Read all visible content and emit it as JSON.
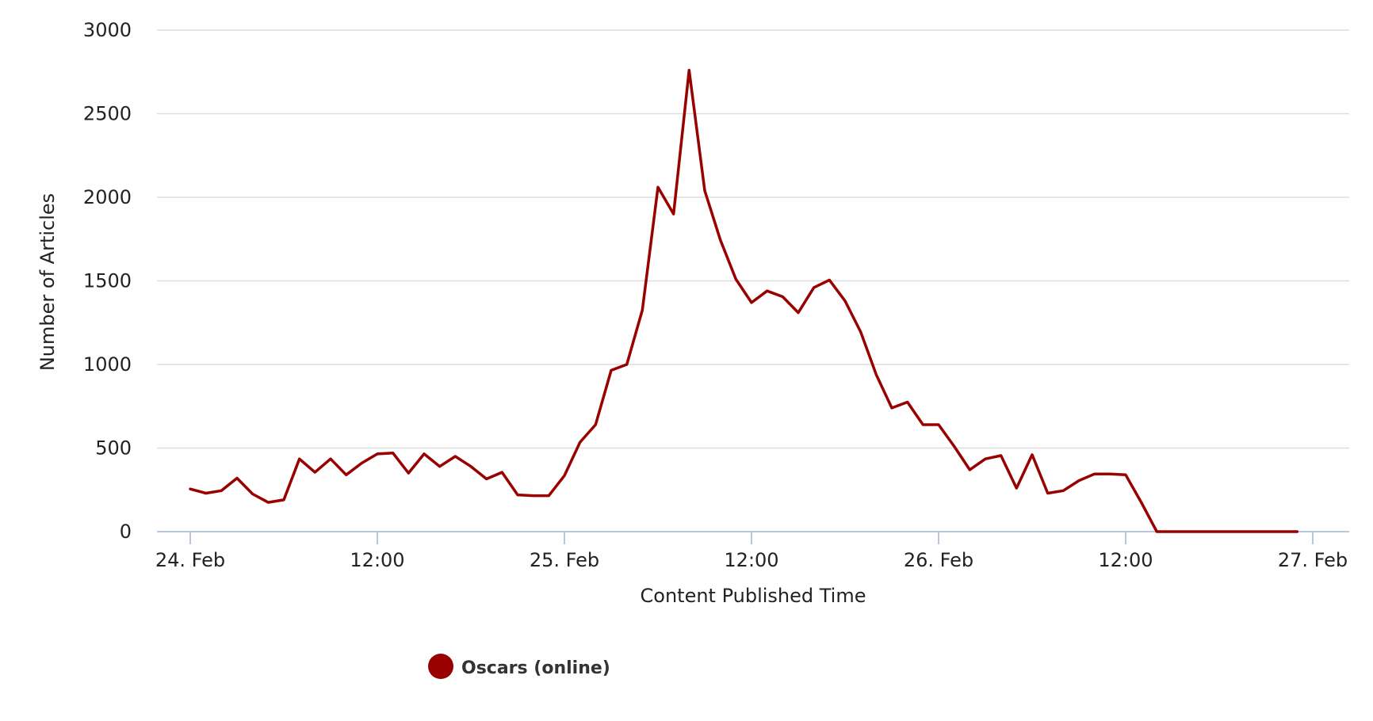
{
  "chart_data": {
    "type": "line",
    "title": "",
    "xlabel": "Content Published Time",
    "ylabel": "Number of Articles",
    "ylim": [
      0,
      3000
    ],
    "y_ticks": [
      "0",
      "500",
      "1000",
      "1500",
      "2000",
      "2500",
      "3000"
    ],
    "x_range_hours": "24 Feb 00:00 – 27 Feb 00:00",
    "x_ticks": [
      {
        "time": "24 Feb 00:00",
        "label": "24. Feb"
      },
      {
        "time": "24 Feb 12:00",
        "label": "12:00"
      },
      {
        "time": "25 Feb 00:00",
        "label": "25. Feb"
      },
      {
        "time": "25 Feb 12:00",
        "label": "12:00"
      },
      {
        "time": "26 Feb 00:00",
        "label": "26. Feb"
      },
      {
        "time": "26 Feb 12:00",
        "label": "12:00"
      },
      {
        "time": "27 Feb 00:00",
        "label": "27. Feb"
      }
    ],
    "grid": true,
    "legend": "bottom-center",
    "series": [
      {
        "name": "Oscars (online)",
        "color": "#990000",
        "x": [
          "24 Feb 00:00",
          "24 Feb 01:00",
          "24 Feb 02:00",
          "24 Feb 03:00",
          "24 Feb 04:00",
          "24 Feb 05:00",
          "24 Feb 06:00",
          "24 Feb 07:00",
          "24 Feb 08:00",
          "24 Feb 09:00",
          "24 Feb 10:00",
          "24 Feb 11:00",
          "24 Feb 12:00",
          "24 Feb 13:00",
          "24 Feb 14:00",
          "24 Feb 15:00",
          "24 Feb 16:00",
          "24 Feb 17:00",
          "24 Feb 18:00",
          "24 Feb 19:00",
          "24 Feb 20:00",
          "24 Feb 21:00",
          "24 Feb 22:00",
          "24 Feb 23:00",
          "25 Feb 00:00",
          "25 Feb 01:00",
          "25 Feb 02:00",
          "25 Feb 03:00",
          "25 Feb 04:00",
          "25 Feb 05:00",
          "25 Feb 06:00",
          "25 Feb 07:00",
          "25 Feb 08:00",
          "25 Feb 09:00",
          "25 Feb 10:00",
          "25 Feb 11:00",
          "25 Feb 12:00",
          "25 Feb 13:00",
          "25 Feb 14:00",
          "25 Feb 15:00",
          "25 Feb 16:00",
          "25 Feb 17:00",
          "25 Feb 18:00",
          "25 Feb 19:00",
          "25 Feb 20:00",
          "25 Feb 21:00",
          "25 Feb 22:00",
          "25 Feb 23:00",
          "26 Feb 00:00",
          "26 Feb 01:00",
          "26 Feb 02:00",
          "26 Feb 03:00",
          "26 Feb 04:00",
          "26 Feb 05:00",
          "26 Feb 06:00",
          "26 Feb 07:00",
          "26 Feb 08:00",
          "26 Feb 09:00",
          "26 Feb 10:00",
          "26 Feb 11:00",
          "26 Feb 12:00",
          "26 Feb 13:00",
          "26 Feb 14:00",
          "26 Feb 15:00",
          "26 Feb 16:00",
          "26 Feb 17:00",
          "26 Feb 18:00",
          "26 Feb 19:00",
          "26 Feb 20:00",
          "26 Feb 21:00",
          "26 Feb 22:00",
          "26 Feb 23:00"
        ],
        "values": [
          255,
          230,
          245,
          320,
          225,
          175,
          190,
          435,
          355,
          435,
          340,
          410,
          465,
          470,
          350,
          465,
          390,
          450,
          390,
          315,
          355,
          220,
          215,
          215,
          335,
          535,
          640,
          965,
          1000,
          1325,
          2060,
          1900,
          2760,
          2040,
          1745,
          1510,
          1370,
          1440,
          1405,
          1310,
          1460,
          1505,
          1380,
          1195,
          940,
          740,
          775,
          640,
          640,
          510,
          370,
          435,
          455,
          260,
          460,
          230,
          245,
          305,
          345,
          345,
          340,
          175,
          0,
          0,
          0,
          0,
          0,
          0,
          0,
          0,
          0,
          0
        ]
      }
    ]
  }
}
